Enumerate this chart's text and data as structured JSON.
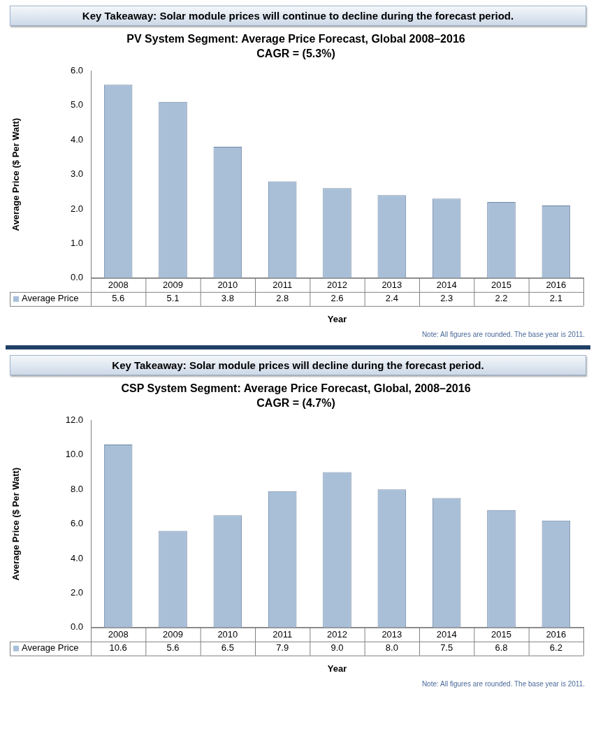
{
  "chart_data": [
    {
      "type": "bar",
      "title": "PV System Segment: Average Price Forecast, Global 2008–2016",
      "subtitle": "CAGR = (5.3%)",
      "xlabel": "Year",
      "ylabel": "Average Price ($ Per Watt)",
      "annotations": [
        "Key Takeaway: Solar module prices will continue to decline during the forecast period.",
        "Note: All figures are rounded. The base year is 2011."
      ],
      "categories": [
        "2008",
        "2009",
        "2010",
        "2011",
        "2012",
        "2013",
        "2014",
        "2015",
        "2016"
      ],
      "series": [
        {
          "name": "Average Price",
          "color": "#a9bfd8",
          "values": [
            5.6,
            5.1,
            3.8,
            2.8,
            2.6,
            2.4,
            2.3,
            2.2,
            2.1
          ],
          "value_labels": [
            "5.6",
            "5.1",
            "3.8",
            "2.8",
            "2.6",
            "2.4",
            "2.3",
            "2.2",
            "2.1"
          ]
        }
      ],
      "ylim": [
        0,
        6
      ],
      "yticks": [
        {
          "value": 0,
          "label": "0.0"
        },
        {
          "value": 1,
          "label": "1.0"
        },
        {
          "value": 2,
          "label": "2.0"
        },
        {
          "value": 3,
          "label": "3.0"
        },
        {
          "value": 4,
          "label": "4.0"
        },
        {
          "value": 5,
          "label": "5.0"
        },
        {
          "value": 6,
          "label": "6.0"
        }
      ],
      "grid": false
    },
    {
      "type": "bar",
      "title": "CSP System Segment: Average Price Forecast, Global, 2008–2016",
      "subtitle": "CAGR = (4.7%)",
      "xlabel": "Year",
      "ylabel": "Average Price ($ Per Watt)",
      "annotations": [
        "Key Takeaway: Solar module prices will decline during the forecast period.",
        "Note: All figures are rounded. The base year is 2011."
      ],
      "categories": [
        "2008",
        "2009",
        "2010",
        "2011",
        "2012",
        "2013",
        "2014",
        "2015",
        "2016"
      ],
      "series": [
        {
          "name": "Average Price",
          "color": "#a9bfd8",
          "values": [
            10.6,
            5.6,
            6.5,
            7.9,
            9.0,
            8.0,
            7.5,
            6.8,
            6.2
          ],
          "value_labels": [
            "10.6",
            "5.6",
            "6.5",
            "7.9",
            "9.0",
            "8.0",
            "7.5",
            "6.8",
            "6.2"
          ]
        }
      ],
      "ylim": [
        0,
        12
      ],
      "yticks": [
        {
          "value": 0,
          "label": "0.0"
        },
        {
          "value": 2,
          "label": "2.0"
        },
        {
          "value": 4,
          "label": "4.0"
        },
        {
          "value": 6,
          "label": "6.0"
        },
        {
          "value": 8,
          "label": "8.0"
        },
        {
          "value": 10,
          "label": "10.0"
        },
        {
          "value": 12,
          "label": "12.0"
        }
      ],
      "grid": false
    }
  ]
}
